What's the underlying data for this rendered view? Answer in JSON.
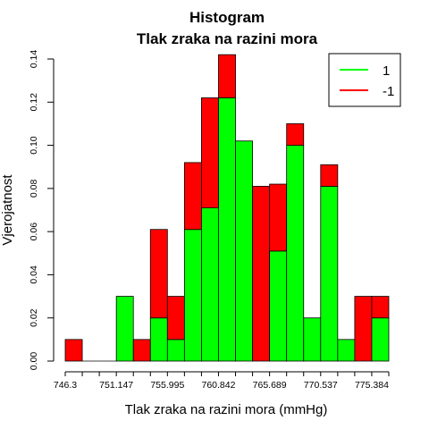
{
  "chart_data": {
    "type": "bar",
    "stacked": true,
    "title": "Histogram",
    "subtitle": "Tlak zraka na razini mora",
    "xlabel": "Tlak zraka na razini mora (mmHg)",
    "ylabel": "Vjerojatnost",
    "ylim": [
      0,
      0.14
    ],
    "yticks": [
      "0.00",
      "0.02",
      "0.04",
      "0.06",
      "0.08",
      "0.10",
      "0.12",
      "0.14"
    ],
    "xticks": [
      "746.3",
      "751.147",
      "755.995",
      "760.842",
      "765.689",
      "770.537",
      "775.384"
    ],
    "bin_count": 19,
    "series": [
      {
        "name": "1",
        "color": "#00ff00",
        "values": [
          0,
          0,
          0,
          0.03,
          0,
          0.02,
          0.01,
          0.061,
          0.071,
          0.122,
          0.102,
          0,
          0.051,
          0.1,
          0.02,
          0.081,
          0.01,
          0,
          0.02
        ]
      },
      {
        "name": "-1",
        "color": "#ff0000",
        "values": [
          0.01,
          0,
          0,
          0,
          0.01,
          0.041,
          0.02,
          0.031,
          0.051,
          0.02,
          0,
          0.081,
          0.031,
          0.01,
          0,
          0.01,
          0,
          0.03,
          0.01
        ]
      }
    ],
    "legend": {
      "position": "top-right",
      "entries": [
        "1",
        "-1"
      ]
    }
  }
}
